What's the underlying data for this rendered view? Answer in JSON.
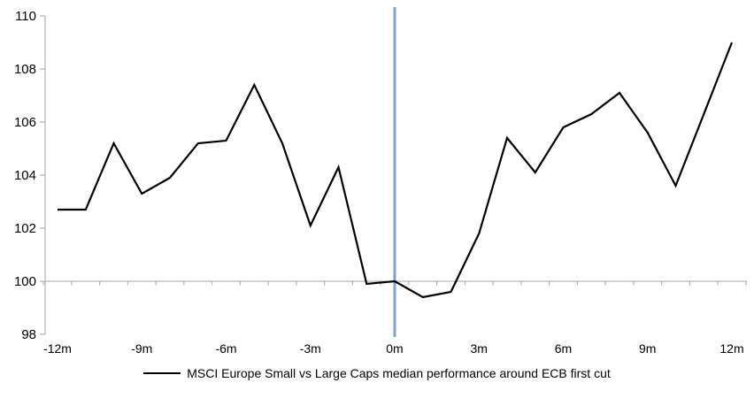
{
  "chart_data": {
    "type": "line",
    "title": "",
    "xlabel": "",
    "ylabel": "",
    "x_unit": "months relative to ECB first cut",
    "months": [
      -12,
      -11,
      -10,
      -9,
      -8,
      -7,
      -6,
      -5,
      -4,
      -3,
      -2,
      -1,
      0,
      1,
      2,
      3,
      4,
      5,
      6,
      7,
      8,
      9,
      10,
      11,
      12
    ],
    "series": [
      {
        "name": "MSCI Europe Small vs Large Caps median performance around ECB first cut",
        "values": [
          102.7,
          102.7,
          105.2,
          103.3,
          103.9,
          105.2,
          105.3,
          107.4,
          105.2,
          102.1,
          104.3,
          99.9,
          100.0,
          99.4,
          99.6,
          101.8,
          105.4,
          104.1,
          105.8,
          106.3,
          107.1,
          105.6,
          103.6,
          106.3,
          109.0
        ]
      }
    ],
    "ylim": [
      98,
      110
    ],
    "y_ticks": [
      98,
      100,
      102,
      104,
      106,
      108,
      110
    ],
    "x_ticks": [
      {
        "m": -12,
        "label": "-12m"
      },
      {
        "m": -9,
        "label": "-9m"
      },
      {
        "m": -6,
        "label": "-6m"
      },
      {
        "m": -3,
        "label": "-3m"
      },
      {
        "m": 0,
        "label": "0m"
      },
      {
        "m": 3,
        "label": "3m"
      },
      {
        "m": 6,
        "label": "6m"
      },
      {
        "m": 9,
        "label": "9m"
      },
      {
        "m": 12,
        "label": "12m"
      }
    ],
    "baseline_value": 100,
    "event_line_month": 0,
    "grid": "off",
    "legend_position": "bottom-center",
    "colors": {
      "series": "#000000",
      "event_line": "#7BA4CD",
      "axis": "#A6A6A6",
      "text": "#000000",
      "background": "#FFFFFF"
    }
  },
  "legend": {
    "label": "MSCI Europe Small vs Large Caps median performance around ECB first cut"
  }
}
